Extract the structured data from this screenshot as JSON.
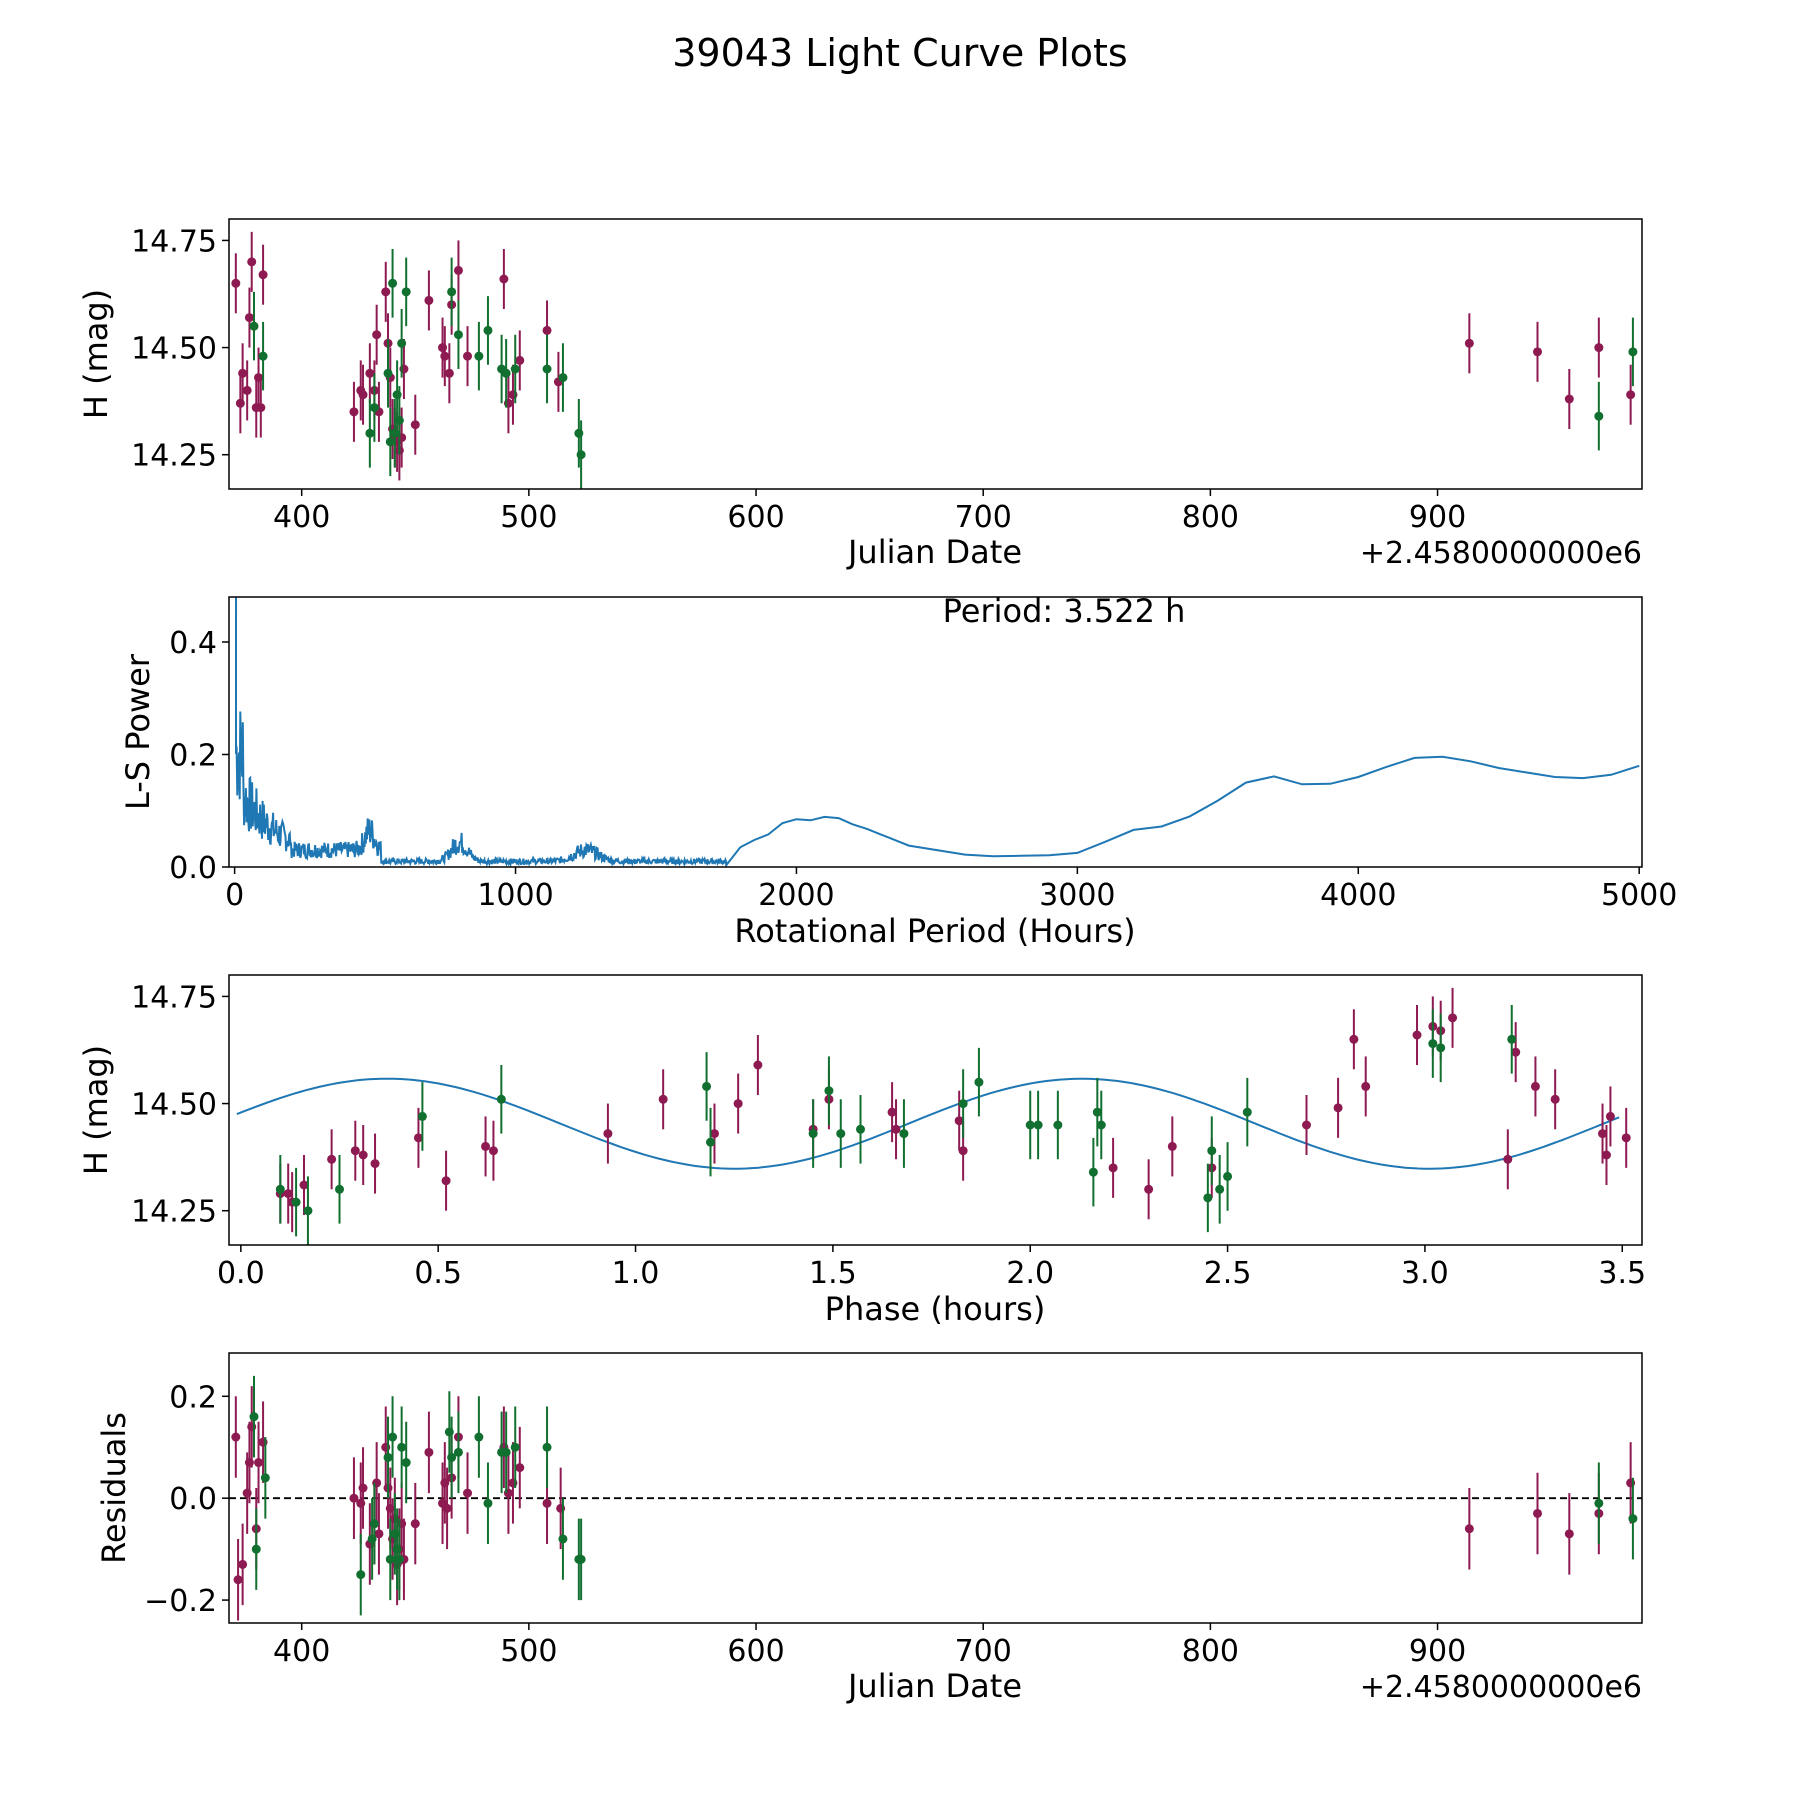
{
  "figure_title": "39043 Light Curve Plots",
  "colors": {
    "series_a": "#8e1a52",
    "series_b": "#11702f",
    "curve": "#1f77b4",
    "axis": "#000000"
  },
  "chart_data": [
    {
      "type": "scatter",
      "name": "light-curve",
      "xlabel": "Julian Date",
      "ylabel": "H (mag)",
      "offset_label": "+2.4580000000e6",
      "xlim": [
        368,
        990
      ],
      "ylim": [
        14.17,
        14.8
      ],
      "xticks": [
        400,
        500,
        600,
        700,
        800,
        900
      ],
      "xtick_labels": [
        "400",
        "500",
        "600",
        "700",
        "800",
        "900"
      ],
      "yticks": [
        14.25,
        14.5,
        14.75
      ],
      "ytick_labels": [
        "14.25",
        "14.50",
        "14.75"
      ],
      "series": [
        {
          "name": "filter-a",
          "color": "#8e1a52",
          "err": 0.07,
          "x": [
            371,
            373,
            374,
            376,
            377,
            378,
            380,
            381,
            382,
            383,
            423,
            426,
            427,
            430,
            432,
            433,
            434,
            437,
            438,
            439,
            440,
            441,
            442,
            443,
            444,
            445,
            450,
            456,
            462,
            463,
            465,
            466,
            469,
            473,
            489,
            491,
            493,
            496,
            508,
            513,
            914,
            944,
            958,
            971,
            985
          ],
          "y": [
            14.65,
            14.37,
            14.44,
            14.4,
            14.57,
            14.7,
            14.36,
            14.43,
            14.36,
            14.67,
            14.35,
            14.4,
            14.39,
            14.44,
            14.4,
            14.53,
            14.35,
            14.63,
            14.51,
            14.43,
            14.31,
            14.29,
            14.28,
            14.26,
            14.29,
            14.45,
            14.32,
            14.61,
            14.5,
            14.48,
            14.44,
            14.6,
            14.68,
            14.48,
            14.66,
            14.37,
            14.39,
            14.47,
            14.54,
            14.42,
            14.51,
            14.49,
            14.38,
            14.5,
            14.39
          ]
        },
        {
          "name": "filter-b",
          "color": "#11702f",
          "err": 0.08,
          "x": [
            379,
            383,
            430,
            432,
            438,
            439,
            440,
            441,
            442,
            443,
            444,
            446,
            466,
            469,
            478,
            482,
            488,
            490,
            494,
            508,
            515,
            522,
            523,
            971,
            986
          ],
          "y": [
            14.55,
            14.48,
            14.3,
            14.36,
            14.44,
            14.28,
            14.65,
            14.3,
            14.39,
            14.33,
            14.51,
            14.63,
            14.63,
            14.53,
            14.48,
            14.54,
            14.45,
            14.44,
            14.45,
            14.45,
            14.43,
            14.3,
            14.25,
            14.34,
            14.49
          ]
        }
      ]
    },
    {
      "type": "line",
      "name": "periodogram",
      "xlabel": "Rotational Period (Hours)",
      "ylabel": "L-S Power",
      "annotation": "Period: 3.522 h",
      "xlim": [
        -20,
        5010
      ],
      "ylim": [
        0,
        0.48
      ],
      "xticks": [
        0,
        1000,
        2000,
        3000,
        4000,
        5000
      ],
      "xtick_labels": [
        "0",
        "1000",
        "2000",
        "3000",
        "4000",
        "5000"
      ],
      "yticks": [
        0,
        0.2,
        0.4
      ],
      "ytick_labels": [
        "0.0",
        "0.2",
        "0.4"
      ],
      "x": [
        1750,
        1800,
        1850,
        1900,
        1950,
        2000,
        2050,
        2100,
        2150,
        2200,
        2250,
        2300,
        2400,
        2500,
        2600,
        2700,
        2800,
        2900,
        3000,
        3100,
        3200,
        3300,
        3400,
        3500,
        3600,
        3700,
        3800,
        3900,
        4000,
        4100,
        4200,
        4300,
        4400,
        4500,
        4600,
        4700,
        4800,
        4900,
        5000
      ],
      "y": [
        0.003,
        0.035,
        0.048,
        0.058,
        0.078,
        0.085,
        0.083,
        0.089,
        0.087,
        0.076,
        0.068,
        0.058,
        0.038,
        0.03,
        0.022,
        0.019,
        0.02,
        0.021,
        0.025,
        0.045,
        0.066,
        0.072,
        0.09,
        0.118,
        0.15,
        0.161,
        0.147,
        0.148,
        0.16,
        0.178,
        0.194,
        0.196,
        0.188,
        0.176,
        0.168,
        0.16,
        0.158,
        0.164,
        0.18
      ]
    },
    {
      "type": "scatter",
      "name": "phased-light-curve",
      "xlabel": "Phase (hours)",
      "ylabel": "H (mag)",
      "xlim": [
        -0.03,
        3.55
      ],
      "ylim": [
        14.17,
        14.8
      ],
      "period": 3.522,
      "fit_mean": 14.453,
      "fit_amp": 0.105,
      "xticks": [
        0,
        0.5,
        1,
        1.5,
        2,
        2.5,
        3,
        3.5
      ],
      "xtick_labels": [
        "0.0",
        "0.5",
        "1.0",
        "1.5",
        "2.0",
        "2.5",
        "3.0",
        "3.5"
      ],
      "yticks": [
        14.25,
        14.5,
        14.75
      ],
      "ytick_labels": [
        "14.25",
        "14.50",
        "14.75"
      ],
      "series": [
        {
          "name": "filter-a",
          "color": "#8e1a52",
          "err": 0.07,
          "x": [
            0.1,
            0.12,
            0.13,
            0.16,
            0.23,
            0.29,
            0.31,
            0.34,
            0.45,
            0.52,
            0.62,
            0.64,
            0.93,
            1.07,
            1.2,
            1.26,
            1.31,
            1.45,
            1.49,
            1.65,
            1.66,
            1.82,
            1.83,
            2.21,
            2.3,
            2.36,
            2.46,
            2.7,
            2.78,
            2.82,
            2.85,
            2.98,
            3.02,
            3.04,
            3.07,
            3.21,
            3.23,
            3.28,
            3.33,
            3.45,
            3.46,
            3.47,
            3.51
          ],
          "y": [
            14.29,
            14.29,
            14.27,
            14.31,
            14.37,
            14.39,
            14.38,
            14.36,
            14.42,
            14.32,
            14.4,
            14.39,
            14.43,
            14.51,
            14.43,
            14.5,
            14.59,
            14.44,
            14.51,
            14.48,
            14.44,
            14.46,
            14.39,
            14.35,
            14.3,
            14.4,
            14.35,
            14.45,
            14.49,
            14.65,
            14.54,
            14.66,
            14.68,
            14.67,
            14.7,
            14.37,
            14.62,
            14.54,
            14.51,
            14.43,
            14.38,
            14.47,
            14.42
          ]
        },
        {
          "name": "filter-b",
          "color": "#11702f",
          "err": 0.08,
          "x": [
            0.1,
            0.14,
            0.17,
            0.25,
            0.46,
            0.66,
            1.18,
            1.19,
            1.45,
            1.49,
            1.52,
            1.57,
            1.68,
            1.83,
            1.87,
            2.0,
            2.02,
            2.07,
            2.16,
            2.17,
            2.18,
            2.45,
            2.46,
            2.48,
            2.5,
            2.55,
            3.02,
            3.04,
            3.22
          ],
          "y": [
            14.3,
            14.27,
            14.25,
            14.3,
            14.47,
            14.51,
            14.54,
            14.41,
            14.43,
            14.53,
            14.43,
            14.44,
            14.43,
            14.5,
            14.55,
            14.45,
            14.45,
            14.45,
            14.34,
            14.48,
            14.45,
            14.28,
            14.39,
            14.3,
            14.33,
            14.48,
            14.64,
            14.63,
            14.65
          ]
        }
      ]
    },
    {
      "type": "scatter",
      "name": "residuals",
      "xlabel": "Julian Date",
      "ylabel": "Residuals",
      "offset_label": "+2.4580000000e6",
      "xlim": [
        368,
        990
      ],
      "ylim": [
        -0.245,
        0.285
      ],
      "reference_line": 0,
      "xticks": [
        400,
        500,
        600,
        700,
        800,
        900
      ],
      "xtick_labels": [
        "400",
        "500",
        "600",
        "700",
        "800",
        "900"
      ],
      "yticks": [
        -0.2,
        0,
        0.2
      ],
      "ytick_labels": [
        "−0.2",
        "0.0",
        "0.2"
      ],
      "series": [
        {
          "name": "filter-a",
          "color": "#8e1a52",
          "err": 0.08,
          "x": [
            371,
            372,
            374,
            376,
            377,
            378,
            380,
            381,
            383,
            423,
            426,
            427,
            430,
            432,
            433,
            434,
            437,
            438,
            439,
            440,
            441,
            442,
            443,
            444,
            445,
            450,
            456,
            462,
            463,
            464,
            466,
            469,
            473,
            489,
            491,
            493,
            496,
            508,
            514,
            914,
            944,
            958,
            971,
            985
          ],
          "y": [
            0.12,
            -0.16,
            -0.13,
            0.01,
            0.07,
            0.14,
            -0.06,
            0.07,
            0.11,
            0.0,
            -0.01,
            0.02,
            -0.09,
            -0.05,
            0.03,
            -0.07,
            0.1,
            0.02,
            -0.02,
            -0.08,
            -0.04,
            -0.13,
            -0.1,
            -0.05,
            -0.12,
            -0.05,
            0.09,
            -0.01,
            0.03,
            -0.02,
            0.04,
            0.12,
            0.01,
            0.1,
            0.01,
            0.03,
            0.06,
            -0.01,
            -0.02,
            -0.06,
            -0.03,
            -0.07,
            -0.03,
            0.03
          ]
        },
        {
          "name": "filter-b",
          "color": "#11702f",
          "err": 0.08,
          "x": [
            379,
            380,
            384,
            426,
            431,
            432,
            438,
            439,
            440,
            441,
            442,
            443,
            444,
            446,
            465,
            466,
            469,
            478,
            482,
            488,
            490,
            494,
            508,
            515,
            522,
            523,
            971,
            986
          ],
          "y": [
            0.16,
            -0.1,
            0.04,
            -0.15,
            -0.08,
            -0.05,
            0.08,
            -0.12,
            0.12,
            -0.07,
            -0.1,
            -0.12,
            0.1,
            0.07,
            0.13,
            0.08,
            0.09,
            0.12,
            -0.01,
            0.09,
            0.09,
            0.1,
            0.1,
            -0.08,
            -0.12,
            -0.12,
            -0.01,
            -0.04
          ]
        }
      ]
    }
  ]
}
